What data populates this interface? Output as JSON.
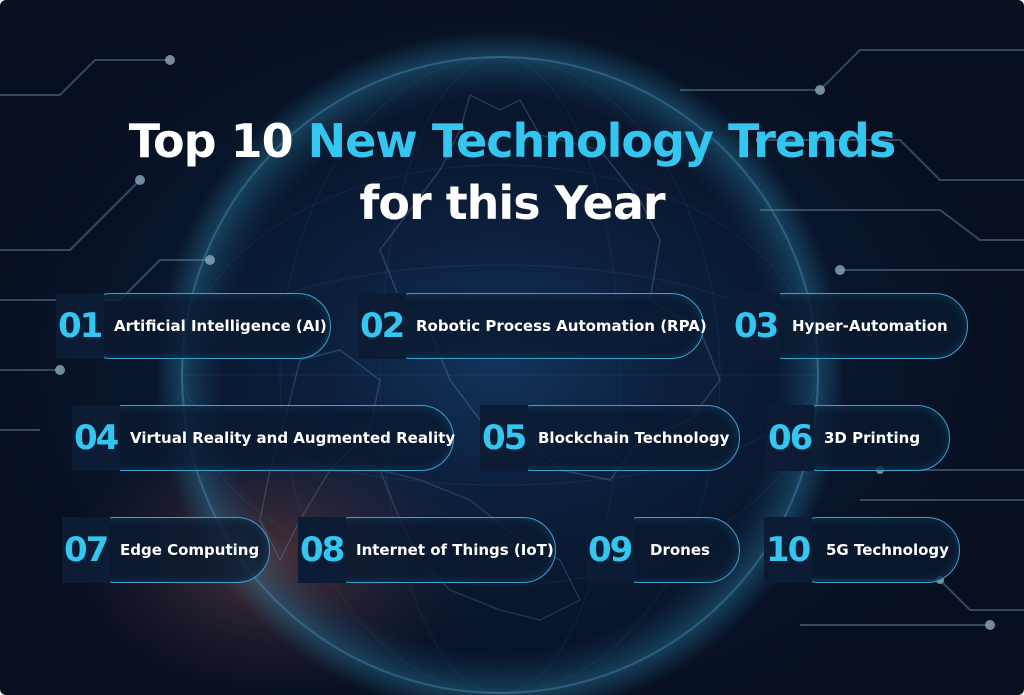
{
  "title": {
    "prefix": "Top 10 ",
    "accent": "New Technology Trends",
    "line2": "for this Year"
  },
  "colors": {
    "accent": "#33c6f0",
    "background": "#0a1a33",
    "pill_border": "#3aa2cf",
    "text": "#ffffff"
  },
  "trends": [
    {
      "num": "01",
      "label": "Artificial Intelligence (AI)"
    },
    {
      "num": "02",
      "label": "Robotic Process Automation (RPA)"
    },
    {
      "num": "03",
      "label": "Hyper-Automation"
    },
    {
      "num": "04",
      "label": "Virtual Reality and Augmented Reality"
    },
    {
      "num": "05",
      "label": "Blockchain Technology"
    },
    {
      "num": "06",
      "label": "3D Printing"
    },
    {
      "num": "07",
      "label": "Edge Computing"
    },
    {
      "num": "08",
      "label": "Internet of Things (IoT)"
    },
    {
      "num": "09",
      "label": "Drones"
    },
    {
      "num": "10",
      "label": "5G Technology"
    }
  ]
}
